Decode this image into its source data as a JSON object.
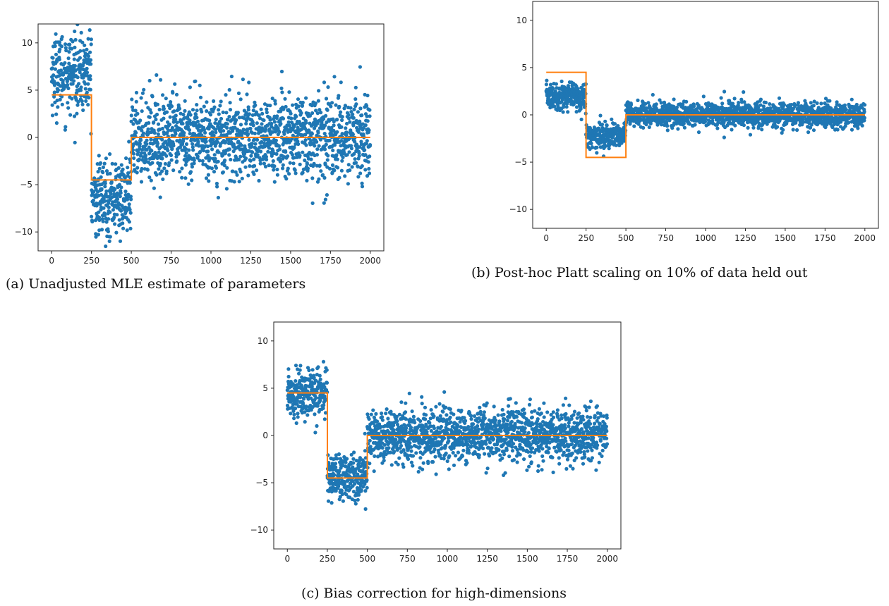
{
  "figures": [
    {
      "caption": "(a) Unadjusted MLE estimate of parameters",
      "chart_data": {
        "type": "scatter",
        "title": "",
        "xlabel": "",
        "ylabel": "",
        "xlim": [
          -85,
          2085
        ],
        "ylim": [
          -12,
          12
        ],
        "x_ticks": [
          0,
          250,
          500,
          750,
          1000,
          1250,
          1500,
          1750,
          2000
        ],
        "y_ticks": [
          -10,
          -5,
          0,
          5,
          10
        ],
        "grid": false,
        "legend": "none",
        "series": [
          {
            "type": "scatter",
            "color": "#1f77b4",
            "points_count": 2000,
            "segments": [
              {
                "x": [
                  0,
                  249
                ],
                "center": 6.8,
                "spread": 2.1
              },
              {
                "x": [
                  250,
                  499
                ],
                "center": -6.4,
                "spread": 2.0
              },
              {
                "x": [
                  500,
                  1999
                ],
                "center": 0.0,
                "spread": 2.2
              }
            ]
          },
          {
            "type": "line",
            "color": "#ff7f0e",
            "x": [
              0,
              250,
              250,
              500,
              500,
              2000
            ],
            "y": [
              4.5,
              4.5,
              -4.5,
              -4.5,
              0,
              0
            ]
          }
        ]
      }
    },
    {
      "caption": "(b) Post-hoc Platt scaling on 10% of data held out",
      "chart_data": {
        "type": "scatter",
        "title": "",
        "xlabel": "",
        "ylabel": "",
        "xlim": [
          -85,
          2085
        ],
        "ylim": [
          -12,
          12
        ],
        "x_ticks": [
          0,
          250,
          500,
          750,
          1000,
          1250,
          1500,
          1750,
          2000
        ],
        "y_ticks": [
          -10,
          -5,
          0,
          5,
          10
        ],
        "grid": false,
        "legend": "none",
        "series": [
          {
            "type": "scatter",
            "color": "#1f77b4",
            "points_count": 2000,
            "segments": [
              {
                "x": [
                  0,
                  249
                ],
                "center": 2.0,
                "spread": 0.7
              },
              {
                "x": [
                  250,
                  499
                ],
                "center": -2.2,
                "spread": 0.7
              },
              {
                "x": [
                  500,
                  1999
                ],
                "center": 0.0,
                "spread": 0.65
              }
            ]
          },
          {
            "type": "line",
            "color": "#ff7f0e",
            "x": [
              0,
              250,
              250,
              500,
              500,
              2000
            ],
            "y": [
              4.5,
              4.5,
              -4.5,
              -4.5,
              0,
              0
            ]
          }
        ]
      }
    },
    {
      "caption": "(c) Bias correction for high-dimensions",
      "chart_data": {
        "type": "scatter",
        "title": "",
        "xlabel": "",
        "ylabel": "",
        "xlim": [
          -85,
          2085
        ],
        "ylim": [
          -12,
          12
        ],
        "x_ticks": [
          0,
          250,
          500,
          750,
          1000,
          1250,
          1500,
          1750,
          2000
        ],
        "y_ticks": [
          -10,
          -5,
          0,
          5,
          10
        ],
        "grid": false,
        "legend": "none",
        "series": [
          {
            "type": "scatter",
            "color": "#1f77b4",
            "points_count": 2000,
            "segments": [
              {
                "x": [
                  0,
                  249
                ],
                "center": 4.5,
                "spread": 1.3
              },
              {
                "x": [
                  250,
                  499
                ],
                "center": -4.3,
                "spread": 1.3
              },
              {
                "x": [
                  500,
                  1999
                ],
                "center": 0.0,
                "spread": 1.4
              }
            ]
          },
          {
            "type": "line",
            "color": "#ff7f0e",
            "x": [
              0,
              250,
              250,
              500,
              500,
              2000
            ],
            "y": [
              4.5,
              4.5,
              -4.5,
              -4.5,
              0,
              0
            ]
          }
        ]
      }
    }
  ]
}
